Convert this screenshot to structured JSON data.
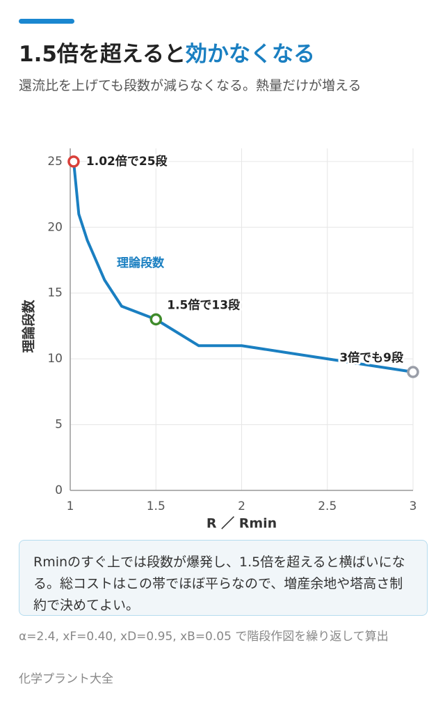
{
  "header": {
    "title": "1.5倍を超えると",
    "title_highlight": "効かなくなる",
    "subtitle": "還流比を上げても段数が減らなくなる。熱量だけが増える"
  },
  "chart_data": {
    "type": "line",
    "x_label": "R ／ Rmin",
    "y_label": "理論段数",
    "x": [
      1.02,
      1.05,
      1.1,
      1.2,
      1.3,
      1.5,
      1.75,
      2.0,
      2.5,
      3.0
    ],
    "series": [
      {
        "name": "理論段数",
        "color": "#1a7fc1",
        "values": [
          25,
          21,
          19,
          16,
          14,
          13,
          11,
          11,
          10,
          9
        ]
      }
    ],
    "xlim": [
      1,
      3
    ],
    "xticks": [
      1,
      1.5,
      2,
      2.5,
      3
    ],
    "ylim": [
      0,
      26
    ],
    "yticks": [
      0,
      5,
      10,
      15,
      20,
      25
    ],
    "grid": true,
    "annotations": [
      {
        "text": "1.02倍で25段",
        "x": 1.02,
        "y": 25,
        "color": "#d9403a"
      },
      {
        "text": "1.5倍で13段",
        "x": 1.5,
        "y": 13,
        "color": "#3e8a2a"
      },
      {
        "text": "3倍でも9段",
        "x": 3.0,
        "y": 9,
        "color": "#9a9ea8"
      }
    ]
  },
  "note": "Rminのすぐ上では段数が爆発し、1.5倍を超えると横ばいになる。総コストはこの帯でほぼ平らなので、増産余地や塔高さ制約で決めてよい。",
  "footnote": "α=2.4, xF=0.40, xD=0.95, xB=0.05 で階段作図を繰り返して算出",
  "source": "化学プラント大全"
}
